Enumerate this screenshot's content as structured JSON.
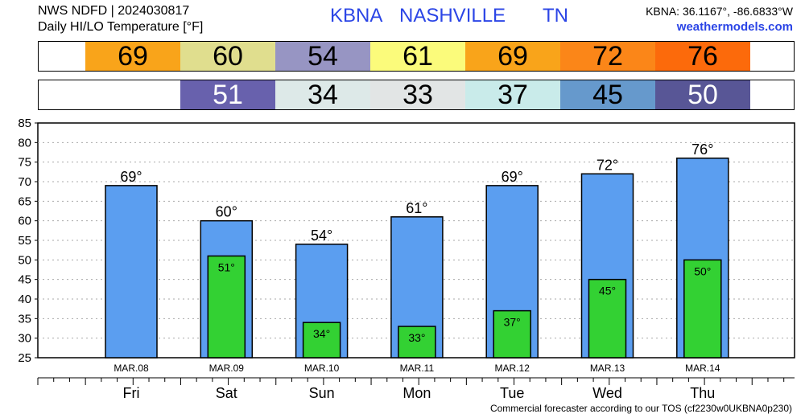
{
  "header": {
    "product": "NWS NDFD | 2024030817",
    "subtitle": "Daily HI/LO Temperature [°F]",
    "station_id": "KBNA",
    "station_name": "NASHVILLE",
    "state": "TN",
    "coords": "KBNA: 36.1167°, -86.6833°W",
    "site": "weathermodels.com"
  },
  "hi_strip": [
    {
      "value": "69",
      "color": "#f9a41a",
      "text_color": "#000000"
    },
    {
      "value": "60",
      "color": "#e0de8e",
      "text_color": "#000000"
    },
    {
      "value": "54",
      "color": "#9795c3",
      "text_color": "#000000"
    },
    {
      "value": "61",
      "color": "#fbfb7b",
      "text_color": "#000000"
    },
    {
      "value": "69",
      "color": "#f9a41a",
      "text_color": "#000000"
    },
    {
      "value": "72",
      "color": "#fb8618",
      "text_color": "#000000"
    },
    {
      "value": "76",
      "color": "#fc6a0b",
      "text_color": "#000000"
    }
  ],
  "lo_strip": [
    {
      "value": "",
      "color": "#ffffff",
      "text_color": "#000000"
    },
    {
      "value": "51",
      "color": "#6861ad",
      "text_color": "#ffffff"
    },
    {
      "value": "34",
      "color": "#dde9e8",
      "text_color": "#000000"
    },
    {
      "value": "33",
      "color": "#e2e5e5",
      "text_color": "#000000"
    },
    {
      "value": "37",
      "color": "#c9ebea",
      "text_color": "#000000"
    },
    {
      "value": "45",
      "color": "#6699cc",
      "text_color": "#000000"
    },
    {
      "value": "50",
      "color": "#585696",
      "text_color": "#ffffff"
    }
  ],
  "chart_data": {
    "type": "bar",
    "categories": [
      "MAR.08",
      "MAR.09",
      "MAR.10",
      "MAR.11",
      "MAR.12",
      "MAR.13",
      "MAR.14"
    ],
    "days": [
      "Fri",
      "Sat",
      "Sun",
      "Mon",
      "Tue",
      "Wed",
      "Thu"
    ],
    "series": [
      {
        "values": [
          69,
          60,
          54,
          61,
          69,
          72,
          76
        ],
        "labels": [
          "69°",
          "60°",
          "54°",
          "61°",
          "69°",
          "72°",
          "76°"
        ],
        "color": "#5b9ef0"
      },
      {
        "values": [
          null,
          51,
          34,
          33,
          37,
          45,
          50
        ],
        "labels": [
          "",
          "51°",
          "34°",
          "33°",
          "37°",
          "45°",
          "50°"
        ],
        "color": "#33d133"
      }
    ],
    "ylim": [
      25,
      85
    ],
    "yticks": [
      25,
      30,
      35,
      40,
      45,
      50,
      55,
      60,
      65,
      70,
      75,
      80,
      85
    ],
    "grid": true
  },
  "footer": "Commercial forecaster according to our TOS (cf2230w0UKBNA0p230)"
}
